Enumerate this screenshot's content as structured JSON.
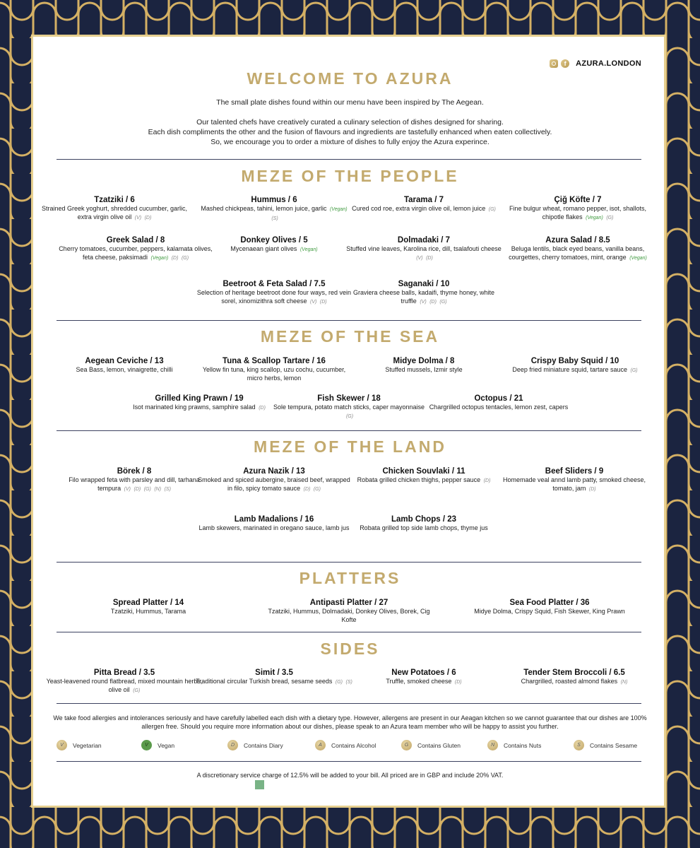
{
  "colors": {
    "navy": "#1b2440",
    "gold": "#c3aa6e",
    "vegan_green": "#3f9a3f"
  },
  "header": {
    "social_icons": [
      "instagram-icon",
      "facebook-icon"
    ],
    "handle": "AZURA.LONDON",
    "title": "WELCOME TO AZURA"
  },
  "intro": {
    "line1": "The small plate dishes found within our menu have been inspired by The Aegean.",
    "line2": "Our talented chefs have creatively curated a culinary selection of dishes designed for sharing.",
    "line3": "Each dish compliments the other and the fusion of flavours and ingredients are tastefully enhanced when eaten collectively.",
    "line4": "So, we encourage you to order a mixture of dishes to fully enjoy the Azura experince."
  },
  "sections": [
    {
      "title": "MEZE OF THE PEOPLE",
      "items": [
        {
          "name": "Tzatziki / 6",
          "desc": "Strained Greek yoghurt, shredded cucumber, garlic, extra virgin olive oil",
          "tags": [
            "(V)",
            "(D)"
          ]
        },
        {
          "name": "Hummus / 6",
          "desc": "Mashed chickpeas, tahini, lemon juice, garlic",
          "tags": [
            "(Vegan)",
            "(S)"
          ]
        },
        {
          "name": "Tarama / 7",
          "desc": "Cured cod roe, extra virgin olive oil, lemon juice",
          "tags": [
            "(G)"
          ]
        },
        {
          "name": "Çiğ Köfte  / 7",
          "desc": "Fine bulgur wheat, romano pepper, isot, shallots, chipotle flakes",
          "tags": [
            "(Vegan)",
            "(G)"
          ]
        },
        {
          "name": "Greek Salad / 8",
          "desc": "Cherry tomatoes, cucumber, peppers, kalamata olives, feta cheese, paksimadi",
          "tags": [
            "(Vegan)",
            "(D)",
            "(G)"
          ]
        },
        {
          "name": "Donkey Olives  / 5",
          "desc": "Mycenaean giant olives",
          "tags": [
            "(Vegan)"
          ]
        },
        {
          "name": "Dolmadaki / 7",
          "desc": "Stuffed vine leaves, Karolina rice, dill, tsalafouti cheese",
          "tags": [
            "(V)",
            "(D)"
          ]
        },
        {
          "name": "Azura Salad / 8.5",
          "desc": "Beluga lentils, black eyed beans, vanilla beans, courgettes, cherry tomatoes, mint, orange",
          "tags": [
            "(Vegan)"
          ]
        },
        {
          "name": "Beetroot & Feta Salad / 7.5",
          "desc": "Selection of heritage beetroot done four ways, red vein sorel, xinomizithra soft cheese",
          "tags": [
            "(V)",
            "(D)"
          ]
        },
        {
          "name": "Saganaki / 10",
          "desc": "Graviera cheese balls, kadaifi, thyme honey, white truffle",
          "tags": [
            "(V)",
            "(D)",
            "(G)"
          ]
        }
      ]
    },
    {
      "title": "MEZE OF THE SEA",
      "items": [
        {
          "name": "Aegean Ceviche / 13",
          "desc": "Sea Bass, lemon, vinaigrette, chilli",
          "tags": []
        },
        {
          "name": "Tuna & Scallop Tartare / 16",
          "desc": "Yellow fin tuna, king scallop, uzu cochu, cucumber, micro herbs, lemon",
          "tags": []
        },
        {
          "name": "Midye Dolma / 8",
          "desc": "Stuffed mussels, Izmir style",
          "tags": []
        },
        {
          "name": "Crispy Baby Squid / 10",
          "desc": "Deep fried miniature squid, tartare sauce",
          "tags": [
            "(G)"
          ]
        },
        {
          "name": "Grilled King Prawn / 19",
          "desc": "Isot marinated king prawns, samphire salad",
          "tags": [
            "(D)"
          ]
        },
        {
          "name": "Fish Skewer / 18",
          "desc": "Sole tempura, potato match sticks, caper mayonnaise",
          "tags": [
            "(G)"
          ]
        },
        {
          "name": "Octopus / 21",
          "desc": "Chargrilled octopus tentacles, lemon zest, capers",
          "tags": []
        }
      ]
    },
    {
      "title": "MEZE OF THE LAND",
      "items": [
        {
          "name": "Börek / 8",
          "desc": "Filo wrapped feta with parsley and dill, tarhana tempura",
          "tags": [
            "(V)",
            "(D)",
            "(G)",
            "(N)",
            "(S)"
          ]
        },
        {
          "name": "Azura Nazik / 13",
          "desc": "Smoked and spiced aubergine, braised beef, wrapped in filo, spicy tomato sauce",
          "tags": [
            "(D)",
            "(G)"
          ]
        },
        {
          "name": "Chicken Souvlaki  / 11",
          "desc": "Robata grilled chicken thighs, pepper sauce",
          "tags": [
            "(D)"
          ]
        },
        {
          "name": "Beef Sliders / 9",
          "desc": "Homemade veal annd lamb patty, smoked cheese, tomato, jam",
          "tags": [
            "(D)"
          ]
        },
        {
          "name": "Lamb Madalions / 16",
          "desc": "Lamb skewers, marinated in oregano sauce, lamb jus",
          "tags": []
        },
        {
          "name": "Lamb Chops / 23",
          "desc": "Robata grilled top side lamb chops, thyme jus",
          "tags": []
        }
      ]
    },
    {
      "title": "PLATTERS",
      "items": [
        {
          "name": "Spread Platter / 14",
          "desc": "Tzatziki, Hummus, Tarama",
          "tags": []
        },
        {
          "name": "Antipasti Platter / 27",
          "desc": "Tzatziki, Hummus, Dolmadaki, Donkey Olives, Borek, Cig Kofte",
          "tags": []
        },
        {
          "name": "Sea Food Platter / 36",
          "desc": "Midye Dolma, Crispy Squid, Fish Skewer, King Prawn",
          "tags": []
        }
      ]
    },
    {
      "title": "SIDES",
      "items": [
        {
          "name": "Pitta Bread / 3.5",
          "desc": "Yeast-leavened round flatbread, mixed mountain herbs, olive oil",
          "tags": [
            "(G)"
          ]
        },
        {
          "name": "Simit / 3.5",
          "desc": "Traditional circular Turkish bread, sesame seeds",
          "tags": [
            "(G)",
            "(S)"
          ]
        },
        {
          "name": "New Potatoes / 6",
          "desc": "Truffle, smoked cheese",
          "tags": [
            "(D)"
          ]
        },
        {
          "name": "Tender Stem Broccoli  / 6.5",
          "desc": "Chargrilled, roasted almond flakes",
          "tags": [
            "(N)"
          ]
        }
      ]
    }
  ],
  "allergy_notice": "We take food allergies and intolerances seriously and have carefully labelled each dish with a dietary type. However, allergens are present in our Aeagan kitchen so we cannot guarantee that our dishes are 100% allergen free. Should you require more information about our dishes, please speak to an Azura team member who will be happy to assist you further.",
  "legend": [
    {
      "letter": "V",
      "label": "Vegetarian"
    },
    {
      "letter": "V",
      "label": "Vegan"
    },
    {
      "letter": "D",
      "label": "Contains Diary"
    },
    {
      "letter": "A",
      "label": "Contains Alcohol"
    },
    {
      "letter": "G",
      "label": "Contains Gluten"
    },
    {
      "letter": "N",
      "label": "Contains Nuts"
    },
    {
      "letter": "S",
      "label": "Contains Sesame"
    }
  ],
  "footer": "A discretionary service charge of 12.5% will be added to your bill. All priced are in GBP and include 20% VAT."
}
